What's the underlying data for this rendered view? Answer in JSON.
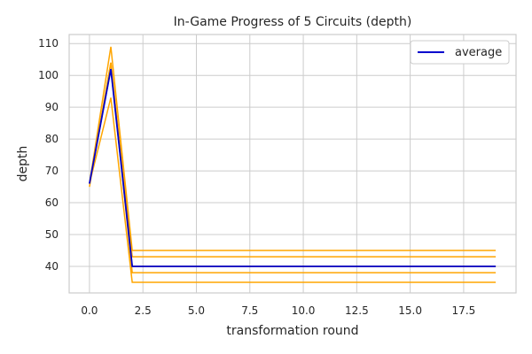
{
  "chart_data": {
    "type": "line",
    "title": "In-Game Progress of 5 Circuits (depth)",
    "xlabel": "transformation round",
    "ylabel": "depth",
    "xlim": [
      -0.95,
      19.95
    ],
    "ylim": [
      31.65,
      112.85
    ],
    "xticks": [
      0.0,
      2.5,
      5.0,
      7.5,
      10.0,
      12.5,
      15.0,
      17.5
    ],
    "xtick_labels": [
      "0.0",
      "2.5",
      "5.0",
      "7.5",
      "10.0",
      "12.5",
      "15.0",
      "17.5"
    ],
    "yticks": [
      40,
      50,
      60,
      70,
      80,
      90,
      100,
      110
    ],
    "ytick_labels": [
      "40",
      "50",
      "60",
      "70",
      "80",
      "90",
      "100",
      "110"
    ],
    "grid": true,
    "legend": {
      "position": "top-right",
      "entries": [
        "average"
      ]
    },
    "x": [
      0,
      1,
      2,
      3,
      4,
      5,
      6,
      7,
      8,
      9,
      10,
      11,
      12,
      13,
      14,
      15,
      16,
      17,
      18,
      19
    ],
    "series": [
      {
        "color": "#ffa500",
        "values": [
          66,
          109,
          45,
          45,
          45,
          45,
          45,
          45,
          45,
          45,
          45,
          45,
          45,
          45,
          45,
          45,
          45,
          45,
          45,
          45
        ]
      },
      {
        "color": "#ffa500",
        "values": [
          66,
          104,
          43,
          43,
          43,
          43,
          43,
          43,
          43,
          43,
          43,
          43,
          43,
          43,
          43,
          43,
          43,
          43,
          43,
          43
        ]
      },
      {
        "color": "#ffa500",
        "values": [
          66,
          102,
          40,
          40,
          40,
          40,
          40,
          40,
          40,
          40,
          40,
          40,
          40,
          40,
          40,
          40,
          40,
          40,
          40,
          40
        ]
      },
      {
        "color": "#ffa500",
        "values": [
          65,
          104,
          38,
          38,
          38,
          38,
          38,
          38,
          38,
          38,
          38,
          38,
          38,
          38,
          38,
          38,
          38,
          38,
          38,
          38
        ]
      },
      {
        "color": "#ffa500",
        "values": [
          66,
          93,
          35,
          35,
          35,
          35,
          35,
          35,
          35,
          35,
          35,
          35,
          35,
          35,
          35,
          35,
          35,
          35,
          35,
          35
        ]
      },
      {
        "name": "average",
        "color": "#0000cd",
        "values": [
          66,
          102,
          40,
          40,
          40,
          40,
          40,
          40,
          40,
          40,
          40,
          40,
          40,
          40,
          40,
          40,
          40,
          40,
          40,
          40
        ]
      }
    ]
  }
}
